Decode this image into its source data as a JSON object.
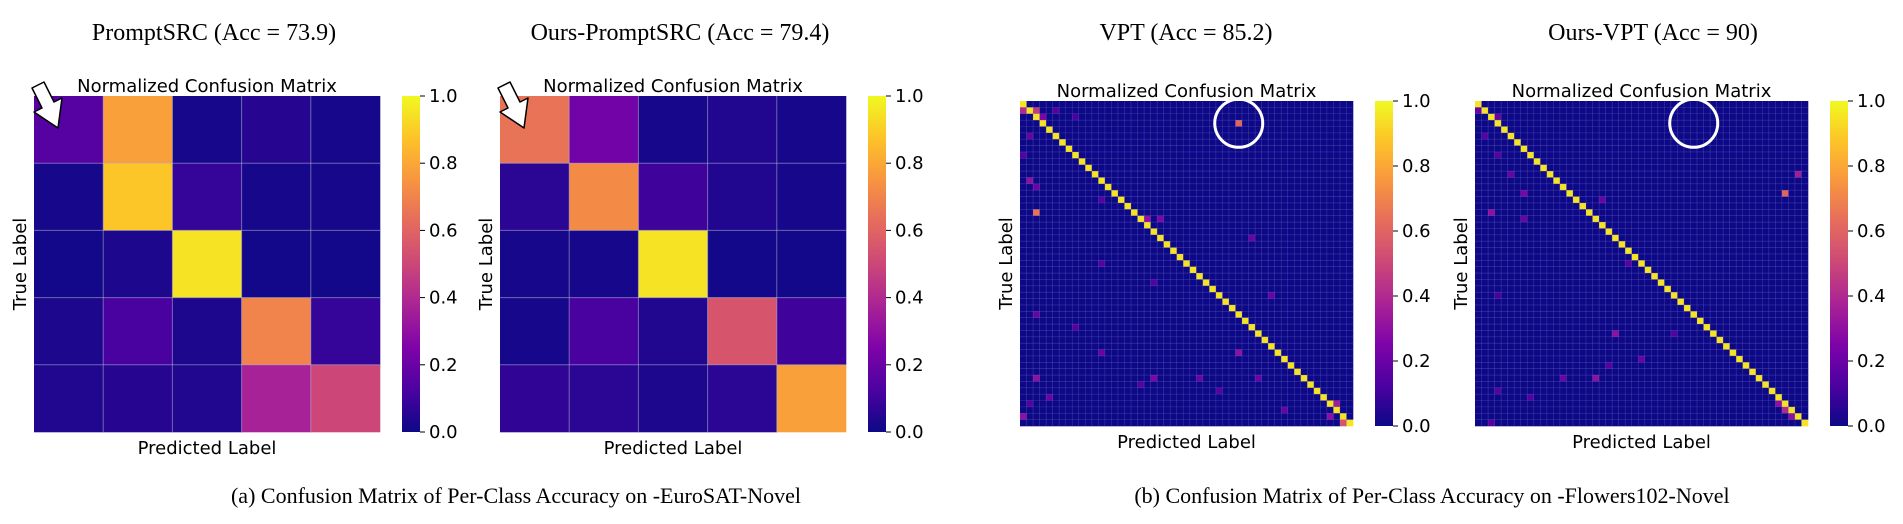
{
  "chart_data": [
    {
      "type": "heatmap",
      "panel_title": "PromptSRC (Acc = 73.9)",
      "title": "Normalized Confusion Matrix",
      "xlabel": "Predicted Label",
      "ylabel": "True Label",
      "colormap": "plasma",
      "vmin": 0.0,
      "vmax": 1.0,
      "colorbar_ticks": [
        "0.0",
        "0.2",
        "0.4",
        "0.6",
        "0.8",
        "1.0"
      ],
      "matrix": [
        [
          0.15,
          0.78,
          0.02,
          0.05,
          0.02
        ],
        [
          0.02,
          0.88,
          0.08,
          0.02,
          0.02
        ],
        [
          0.01,
          0.03,
          0.95,
          0.01,
          0.01
        ],
        [
          0.03,
          0.12,
          0.03,
          0.7,
          0.08
        ],
        [
          0.04,
          0.05,
          0.04,
          0.37,
          0.5
        ]
      ],
      "annotation": "arrow-cell-0-0"
    },
    {
      "type": "heatmap",
      "panel_title": "Ours-PromptSRC (Acc = 79.4)",
      "title": "Normalized Confusion Matrix",
      "xlabel": "Predicted Label",
      "ylabel": "True Label",
      "colormap": "plasma",
      "vmin": 0.0,
      "vmax": 1.0,
      "colorbar_ticks": [
        "0.0",
        "0.2",
        "0.4",
        "0.6",
        "0.8",
        "1.0"
      ],
      "matrix": [
        [
          0.65,
          0.22,
          0.02,
          0.04,
          0.02
        ],
        [
          0.06,
          0.72,
          0.1,
          0.04,
          0.02
        ],
        [
          0.02,
          0.02,
          0.95,
          0.01,
          0.01
        ],
        [
          0.02,
          0.12,
          0.04,
          0.55,
          0.1
        ],
        [
          0.07,
          0.06,
          0.03,
          0.06,
          0.78
        ]
      ],
      "annotation": "arrow-cell-0-0"
    },
    {
      "type": "heatmap",
      "panel_title": "VPT (Acc = 85.2)",
      "title": "Normalized Confusion Matrix",
      "xlabel": "Predicted Label",
      "ylabel": "True Label",
      "colormap": "plasma",
      "vmin": 0.0,
      "vmax": 1.0,
      "colorbar_ticks": [
        "0.0",
        "0.2",
        "0.4",
        "0.6",
        "0.8",
        "1.0"
      ],
      "n_classes": 51,
      "diagonal_value": 0.95,
      "offdiag": [
        [
          1,
          0,
          0.4
        ],
        [
          1,
          2,
          0.45
        ],
        [
          2,
          3,
          0.25
        ],
        [
          1,
          5,
          0.15
        ],
        [
          2,
          8,
          0.12
        ],
        [
          3,
          33,
          0.6
        ],
        [
          5,
          1,
          0.2
        ],
        [
          8,
          0,
          0.15
        ],
        [
          12,
          1,
          0.3
        ],
        [
          13,
          2,
          0.2
        ],
        [
          17,
          2,
          0.65
        ],
        [
          18,
          19,
          0.3
        ],
        [
          18,
          21,
          0.25
        ],
        [
          15,
          12,
          0.15
        ],
        [
          21,
          35,
          0.2
        ],
        [
          25,
          12,
          0.15
        ],
        [
          28,
          20,
          0.15
        ],
        [
          33,
          2,
          0.2
        ],
        [
          39,
          33,
          0.3
        ],
        [
          39,
          12,
          0.2
        ],
        [
          43,
          2,
          0.3
        ],
        [
          43,
          20,
          0.25
        ],
        [
          43,
          27,
          0.2
        ],
        [
          43,
          36,
          0.2
        ],
        [
          44,
          18,
          0.15
        ],
        [
          45,
          30,
          0.15
        ],
        [
          46,
          4,
          0.2
        ],
        [
          47,
          1,
          0.15
        ],
        [
          48,
          40,
          0.2
        ],
        [
          49,
          0,
          0.3
        ],
        [
          50,
          49,
          0.55
        ],
        [
          47,
          48,
          0.35
        ],
        [
          49,
          47,
          0.3
        ],
        [
          30,
          38,
          0.2
        ],
        [
          35,
          8,
          0.15
        ]
      ],
      "annotation": "circle-row-3-col-33"
    },
    {
      "type": "heatmap",
      "panel_title": "Ours-VPT (Acc = 90)",
      "title": "Normalized Confusion Matrix",
      "xlabel": "Predicted Label",
      "ylabel": "True Label",
      "colormap": "plasma",
      "vmin": 0.0,
      "vmax": 1.0,
      "colorbar_ticks": [
        "0.0",
        "0.2",
        "0.4",
        "0.6",
        "0.8",
        "1.0"
      ],
      "n_classes": 51,
      "diagonal_value": 0.95,
      "offdiag": [
        [
          1,
          0,
          0.2
        ],
        [
          2,
          3,
          0.2
        ],
        [
          5,
          1,
          0.15
        ],
        [
          8,
          3,
          0.15
        ],
        [
          11,
          5,
          0.2
        ],
        [
          14,
          7,
          0.25
        ],
        [
          15,
          19,
          0.2
        ],
        [
          17,
          2,
          0.3
        ],
        [
          18,
          7,
          0.2
        ],
        [
          11,
          49,
          0.35
        ],
        [
          14,
          47,
          0.6
        ],
        [
          25,
          23,
          0.15
        ],
        [
          30,
          3,
          0.12
        ],
        [
          36,
          21,
          0.3
        ],
        [
          36,
          30,
          0.15
        ],
        [
          41,
          20,
          0.15
        ],
        [
          40,
          25,
          0.2
        ],
        [
          43,
          13,
          0.2
        ],
        [
          43,
          18,
          0.3
        ],
        [
          45,
          3,
          0.15
        ],
        [
          47,
          46,
          0.3
        ],
        [
          48,
          47,
          0.4
        ],
        [
          49,
          48,
          0.3
        ],
        [
          50,
          2,
          0.15
        ],
        [
          46,
          8,
          0.15
        ]
      ],
      "annotation": "circle-empty"
    }
  ],
  "captions": {
    "a": "(a) Confusion Matrix of Per-Class Accuracy on -EuroSAT-Novel",
    "b": "(b) Confusion Matrix of Per-Class Accuracy on -Flowers102-Novel"
  }
}
